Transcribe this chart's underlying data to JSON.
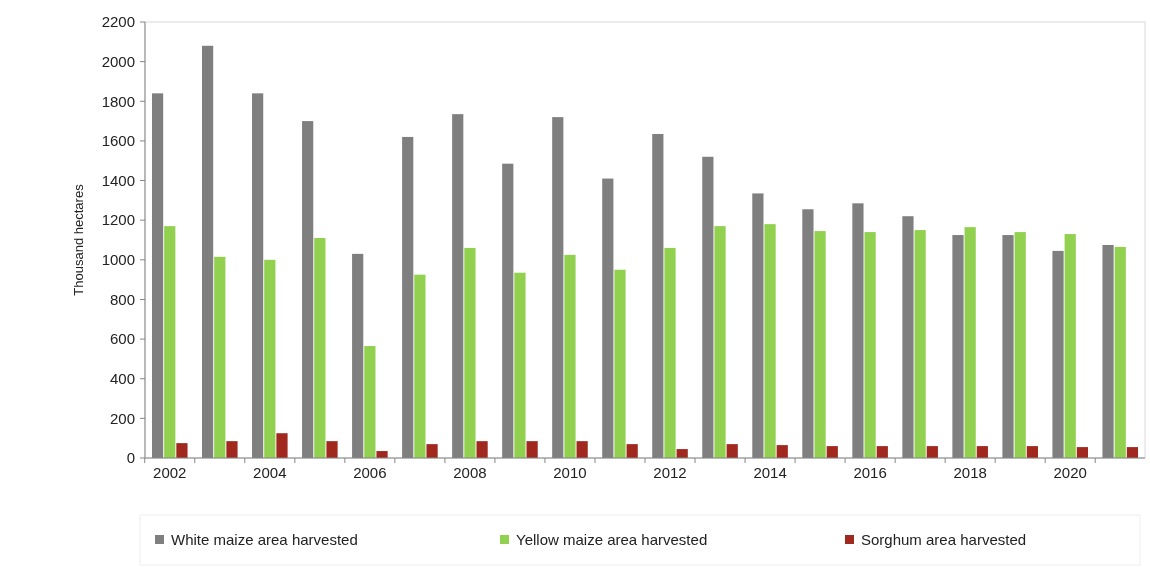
{
  "chart_data": {
    "type": "bar",
    "ylabel": "Thousand hectares",
    "categories": [
      "2002",
      null,
      "2004",
      null,
      "2006",
      null,
      "2008",
      null,
      "2010",
      null,
      "2012",
      null,
      "2014",
      null,
      "2016",
      null,
      "2018",
      null,
      "2020",
      null
    ],
    "series": [
      {
        "name": "White maize area harvested",
        "color": "#7f7f7f",
        "values": [
          1840,
          2080,
          1840,
          1700,
          1030,
          1620,
          1735,
          1485,
          1720,
          1410,
          1635,
          1520,
          1335,
          1255,
          1285,
          1220,
          1125,
          1125,
          1045,
          1075
        ]
      },
      {
        "name": "Yellow maize area harvested",
        "color": "#92d050",
        "values": [
          1170,
          1015,
          1000,
          1110,
          565,
          925,
          1060,
          935,
          1025,
          950,
          1060,
          1170,
          1180,
          1145,
          1140,
          1150,
          1165,
          1140,
          1130,
          1065
        ]
      },
      {
        "name": "Sorghum area harvested",
        "color": "#a0281e",
        "values": [
          75,
          85,
          125,
          85,
          35,
          70,
          85,
          85,
          85,
          70,
          45,
          70,
          65,
          60,
          60,
          60,
          60,
          60,
          55,
          55
        ]
      }
    ],
    "ylim": [
      0,
      2200
    ],
    "yticks": [
      0,
      200,
      400,
      600,
      800,
      1000,
      1200,
      1400,
      1600,
      1800,
      2000,
      2200
    ],
    "grid": false,
    "legend": "bottom"
  }
}
